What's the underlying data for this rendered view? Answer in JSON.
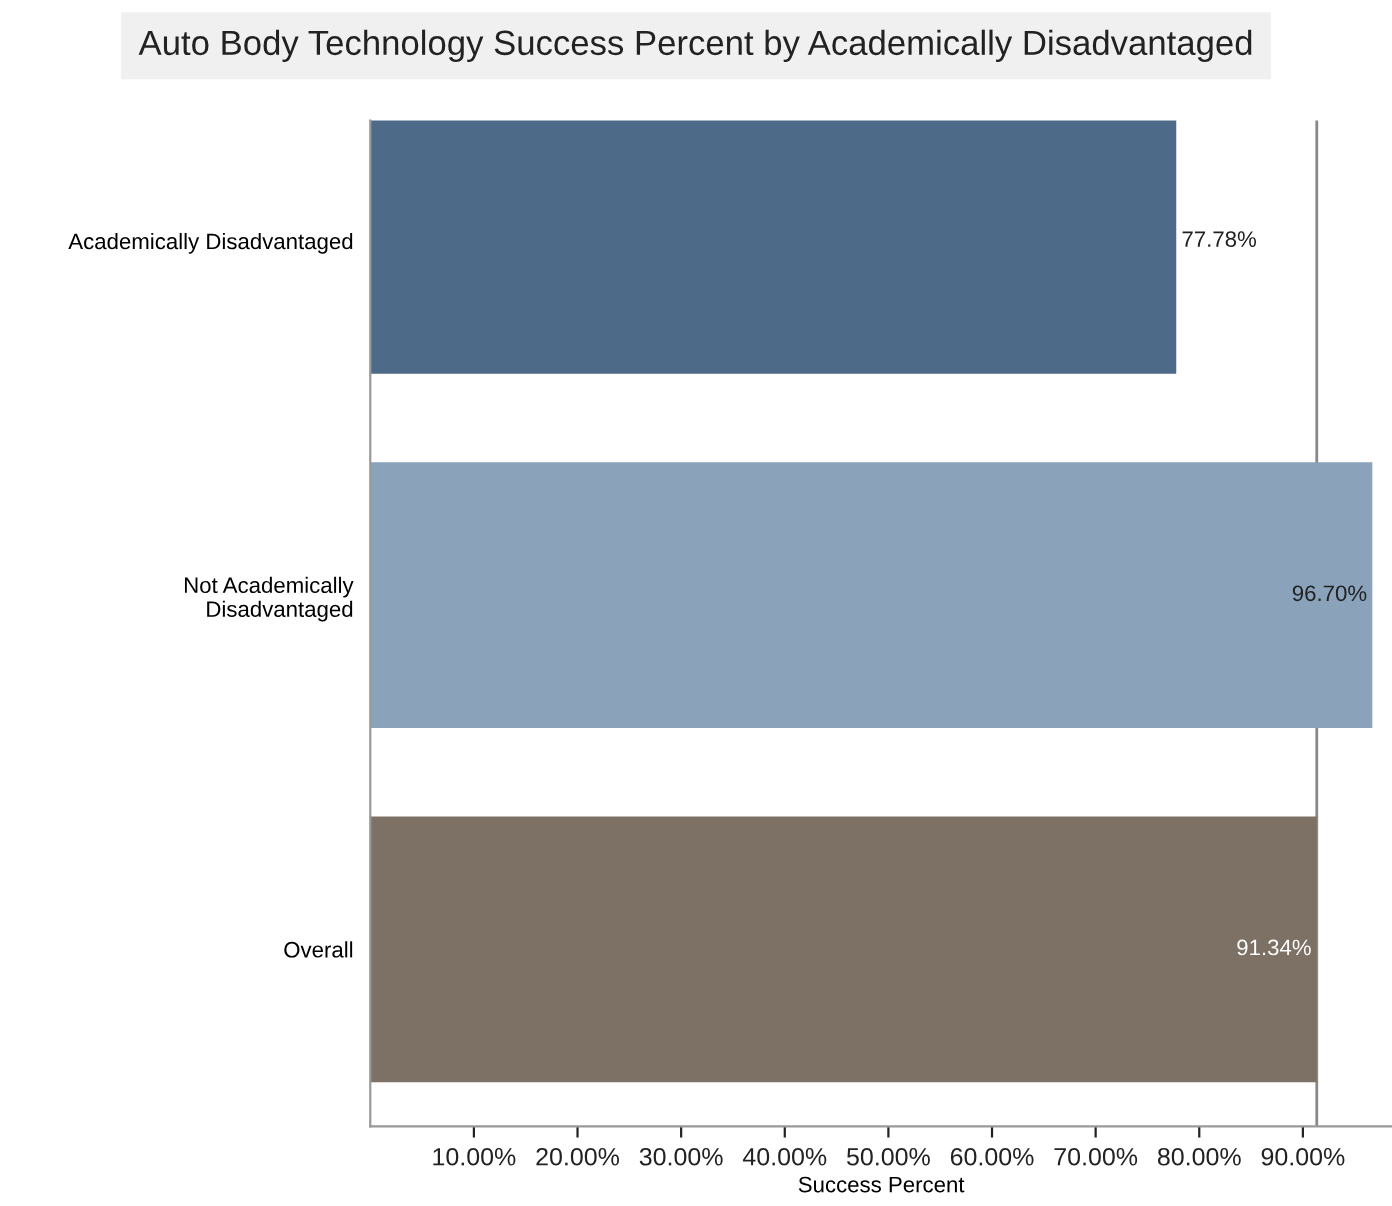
{
  "chart_data": {
    "type": "bar",
    "orientation": "horizontal",
    "title": "Auto Body Technology Success Percent by Academically Disadvantaged",
    "xlabel": "Success Percent",
    "categories": [
      "Academically Disadvantaged",
      "Not Academically\nDisadvantaged",
      "Overall"
    ],
    "values": [
      77.78,
      96.7,
      91.34
    ],
    "colors": [
      "#4e6a89",
      "#8aa3bb",
      "#7d7165"
    ],
    "value_labels": [
      "77.78%",
      "96.70%",
      "91.34%"
    ],
    "xlim": [
      0,
      98.6
    ],
    "xticks": [
      {
        "value": 10,
        "label": "10.00%"
      },
      {
        "value": 20,
        "label": "20.00%"
      },
      {
        "value": 30,
        "label": "30.00%"
      },
      {
        "value": 40,
        "label": "40.00%"
      },
      {
        "value": 50,
        "label": "50.00%"
      },
      {
        "value": 60,
        "label": "60.00%"
      },
      {
        "value": 70,
        "label": "70.00%"
      },
      {
        "value": 80,
        "label": "80.00%"
      },
      {
        "value": 90,
        "label": "90.00%"
      }
    ],
    "ref_lines": [
      {
        "axis": "x",
        "value": 91.34,
        "color": "#888888"
      }
    ],
    "grid": false
  }
}
